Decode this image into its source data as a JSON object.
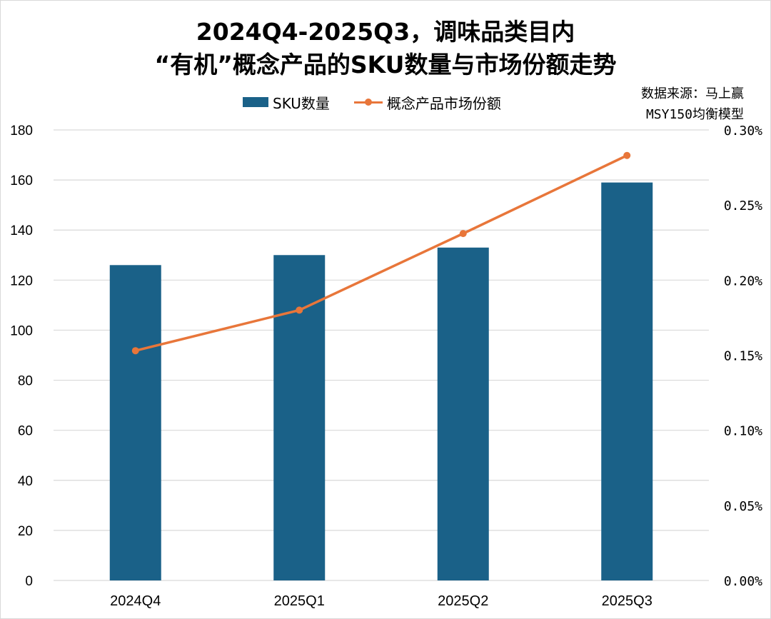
{
  "title": {
    "line1": "2024Q4-2025Q3，调味品类目内",
    "line2": "“有机”概念产品的SKU数量与市场份额走势"
  },
  "source": {
    "line1": "数据来源：马上赢",
    "line2": "MSY150均衡模型"
  },
  "colors": {
    "bar": "#1a6188",
    "line": "#e8763a",
    "grid": "#d9d9d9"
  },
  "chart_data": {
    "type": "bar",
    "categories": [
      "2024Q4",
      "2025Q1",
      "2025Q2",
      "2025Q3"
    ],
    "series": [
      {
        "name": "SKU数量",
        "type": "bar",
        "axis": "left",
        "values": [
          126,
          130,
          133,
          159
        ]
      },
      {
        "name": "概念产品市场份额",
        "type": "line",
        "axis": "right",
        "values": [
          0.00153,
          0.0018,
          0.00231,
          0.00283
        ]
      }
    ],
    "y_left": {
      "lim": [
        0,
        180
      ],
      "ticks": [
        "0",
        "20",
        "40",
        "60",
        "80",
        "100",
        "120",
        "140",
        "160",
        "180"
      ]
    },
    "y_right": {
      "lim": [
        0,
        0.003
      ],
      "ticks": [
        "0.00%",
        "0.05%",
        "0.10%",
        "0.15%",
        "0.20%",
        "0.25%",
        "0.30%"
      ]
    },
    "grid": true,
    "legend": "top-center"
  }
}
